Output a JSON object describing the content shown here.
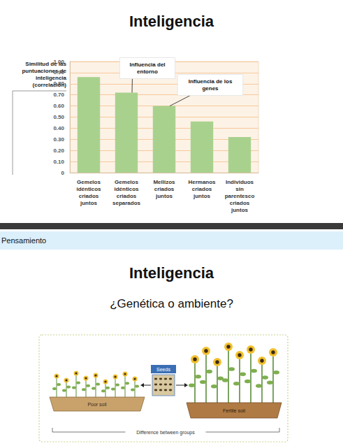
{
  "chart_data": {
    "type": "bar",
    "title": "Inteligencia",
    "y_label": "Similitud de las puntuaciones de inteligencia (correlación)",
    "categories": [
      "Gemelos idénticos criados juntos",
      "Gemelos idénticos criados separados",
      "Mellizos criados juntos",
      "Hermanos criados juntos",
      "Individuos sin parentesco criados juntos"
    ],
    "values": [
      0.86,
      0.72,
      0.6,
      0.46,
      0.32
    ],
    "color": "#a9d18e",
    "ylim": [
      0,
      1
    ],
    "yticks": [
      0,
      {
        "value": 0.1,
        "label": "0.10"
      },
      {
        "value": 0.2,
        "label": "0.20"
      },
      {
        "value": 0.3,
        "label": "0.30"
      },
      {
        "value": 0.4,
        "label": "0.40"
      },
      {
        "value": 0.5,
        "label": "0.50"
      },
      {
        "value": 0.6,
        "label": "0.60"
      },
      {
        "value": 0.7,
        "label": "0.70"
      },
      {
        "value": 0.8,
        "label": "0.80"
      },
      {
        "value": 0.9,
        "label": "0.90"
      },
      {
        "value": 1,
        "label": "1.00"
      }
    ],
    "grid": true,
    "annotations": [
      {
        "text": "Influencia del entorno",
        "category": "Gemelos idénticos criados separados"
      },
      {
        "text": "Influencia de los genes",
        "category": "Mellizos criados juntos"
      }
    ]
  },
  "header_bar": {
    "label": "Pensamiento"
  },
  "slide": {
    "title": "Inteligencia",
    "subtitle": "¿Genética o ambiente?",
    "illustration": {
      "seeds": "Seeds",
      "left": "Poor soil",
      "right": "Fertile soil",
      "caption": "Difference between groups"
    }
  }
}
